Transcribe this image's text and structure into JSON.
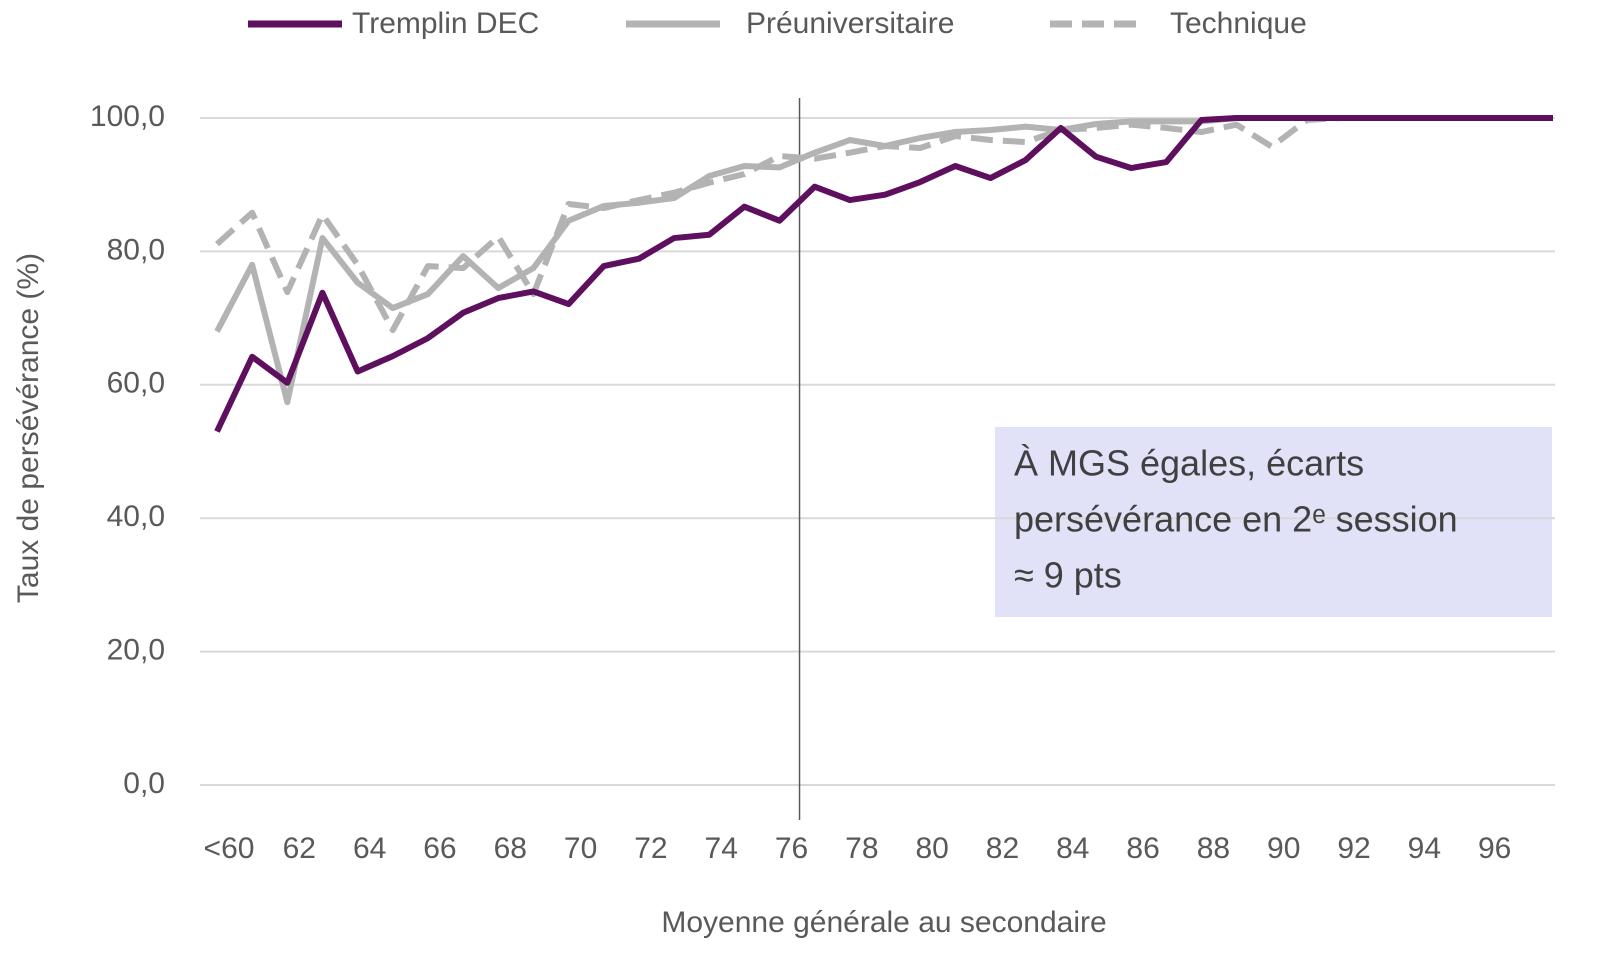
{
  "chart_data": {
    "type": "line",
    "x_label": "Moyenne générale au secondaire",
    "y_label": "Taux de persévérance (%)",
    "categories": [
      "<60",
      null,
      "62",
      null,
      "64",
      null,
      "66",
      null,
      "68",
      null,
      "70",
      null,
      "72",
      null,
      "74",
      null,
      "76",
      null,
      "78",
      null,
      "80",
      null,
      "82",
      null,
      "84",
      null,
      "86",
      null,
      "88",
      null,
      "90",
      null,
      "92",
      null,
      "94",
      null,
      "96",
      null,
      null
    ],
    "series": [
      {
        "name": "Tremplin DEC",
        "color": "#5e0f5e",
        "dash": false,
        "values": [
          53,
          64.2,
          60.3,
          73.8,
          62,
          64.3,
          67,
          70.8,
          73,
          74,
          72.1,
          77.8,
          78.9,
          82,
          82.5,
          86.7,
          84.6,
          89.7,
          87.7,
          88.5,
          90.4,
          92.8,
          91,
          93.7,
          98.5,
          94.2,
          92.5,
          93.4,
          99.7,
          100,
          100,
          100,
          100,
          100,
          100,
          100,
          100,
          100,
          100
        ]
      },
      {
        "name": "Préuniversitaire",
        "color": "#b3b3b3",
        "dash": false,
        "values": [
          68,
          78,
          57.4,
          82,
          75.3,
          71.5,
          73.6,
          79.3,
          74.5,
          77.5,
          84.6,
          86.8,
          87.3,
          88,
          91.3,
          92.8,
          92.6,
          94.8,
          96.7,
          95.8,
          97,
          97.9,
          98.2,
          98.7,
          98.2,
          99.1,
          99.5,
          99.5,
          99.5,
          100,
          100,
          100,
          100,
          100,
          100,
          100,
          100,
          100,
          100
        ]
      },
      {
        "name": "Technique",
        "color": "#b3b3b3",
        "dash": true,
        "values": [
          81.1,
          85.8,
          73.9,
          85.5,
          78,
          68.2,
          77.8,
          77.5,
          82.2,
          73.6,
          87.1,
          86.5,
          87.7,
          88.8,
          90.3,
          91.6,
          94.3,
          93.9,
          94.8,
          95.8,
          95.5,
          97.3,
          96.7,
          96.4,
          98.2,
          98.5,
          99,
          98.5,
          97.9,
          99,
          95.7,
          99.7,
          100,
          100,
          100,
          100,
          100,
          100,
          100
        ]
      }
    ],
    "ylim": [
      0,
      100
    ],
    "yticks": [
      {
        "value": 0,
        "label": "0,0"
      },
      {
        "value": 20,
        "label": "20,0"
      },
      {
        "value": 40,
        "label": "40,0"
      },
      {
        "value": 60,
        "label": "60,0"
      },
      {
        "value": 80,
        "label": "80,0"
      },
      {
        "value": 100,
        "label": "100,0"
      }
    ],
    "grid": true,
    "legend": "top",
    "vline": "76",
    "annotation": [
      "À MGS égales, écarts",
      "persévérance en 2ᵉ session",
      "≈ 9 pts"
    ]
  }
}
